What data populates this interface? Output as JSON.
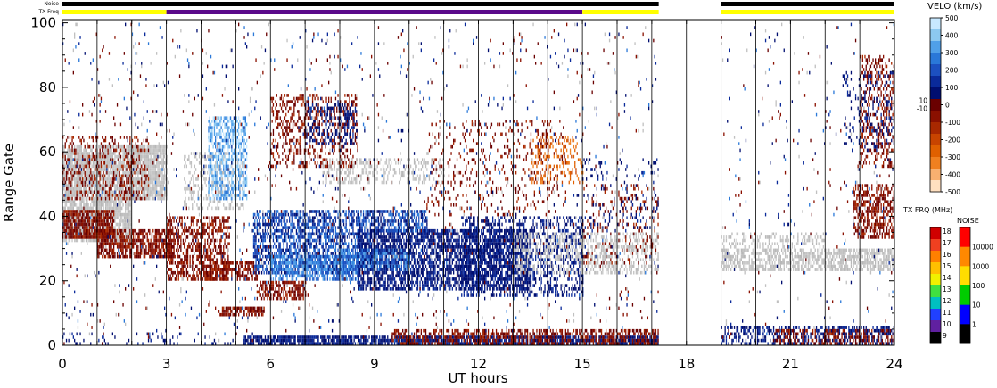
{
  "header": {
    "noise_label": "Noise",
    "txfreq_label": "TX Freq"
  },
  "chart_data": {
    "type": "heatmap",
    "xlabel": "UT hours",
    "ylabel": "Range Gate",
    "xlim": [
      0,
      24
    ],
    "ylim": [
      0,
      101
    ],
    "xticks": [
      "0",
      "3",
      "6",
      "9",
      "12",
      "15",
      "18",
      "21",
      "24"
    ],
    "yticks": [
      "0",
      "20",
      "40",
      "60",
      "80",
      "100"
    ],
    "noise_bar": {
      "color": "#000000",
      "segments": [
        [
          0,
          17.2
        ],
        [
          19.0,
          24
        ]
      ]
    },
    "txfreq_bar": {
      "segments": [
        {
          "start": 0,
          "end": 3,
          "color": "#ffff00"
        },
        {
          "start": 3,
          "end": 15,
          "color": "#5a0a8a"
        },
        {
          "start": 15,
          "end": 17.2,
          "color": "#ffff00"
        },
        {
          "start": 19.0,
          "end": 24,
          "color": "#ffff00"
        }
      ]
    },
    "velocity_scale": {
      "title": "VELO (km/s)",
      "ticks": [
        "500",
        "400",
        "300",
        "200",
        "100",
        "0",
        "-100",
        "-200",
        "-300",
        "-400",
        "-500"
      ],
      "inner_ticks": [
        "10",
        "-10"
      ],
      "colors": [
        "#c8e8ff",
        "#8cc8f0",
        "#50a0e8",
        "#2a78d8",
        "#1c50c0",
        "#0a2a9a",
        "#000e70",
        "#6a0000",
        "#8a1000",
        "#a82800",
        "#c84400",
        "#e06000",
        "#f08020",
        "#f8b070",
        "#ffe0c0"
      ]
    },
    "txfreq_scale": {
      "title": "TX FRQ (MHz)",
      "ticks": [
        "18",
        "17",
        "16",
        "15",
        "14",
        "13",
        "12",
        "11",
        "10",
        "9"
      ],
      "colors": [
        "#d00000",
        "#f04020",
        "#ff8000",
        "#ffc000",
        "#f0f000",
        "#40e040",
        "#00c0c0",
        "#2040ff",
        "#6020a0",
        "#000000"
      ]
    },
    "noise_scale": {
      "title": "NOISE",
      "ticks": [
        "10000",
        "1000",
        "100",
        "10",
        "1"
      ],
      "colors": [
        "#ff0000",
        "#ff8800",
        "#ffdd00",
        "#00cc00",
        "#0000ff",
        "#000000"
      ]
    },
    "ground_scatter_color": "#c0c0c0",
    "regions": [
      {
        "name": "ground-scatter",
        "t0": 0,
        "t1": 3,
        "g0": 45,
        "g1": 62,
        "type": "gray",
        "density": 0.85
      },
      {
        "name": "ground-scatter",
        "t0": 0,
        "t1": 2.0,
        "g0": 32,
        "g1": 45,
        "type": "gray",
        "density": 0.8
      },
      {
        "name": "e-region-echo",
        "t0": 0,
        "t1": 1.5,
        "g0": 33,
        "g1": 42,
        "type": "red",
        "density": 0.8
      },
      {
        "name": "e-region-echo",
        "t0": 1,
        "t1": 3.2,
        "g0": 27,
        "g1": 36,
        "type": "red",
        "density": 0.7
      },
      {
        "name": "e-region-echo",
        "t0": 0,
        "t1": 2.5,
        "g0": 45,
        "g1": 65,
        "type": "red",
        "density": 0.25
      },
      {
        "name": "echo",
        "t0": 3,
        "t1": 4.8,
        "g0": 20,
        "g1": 40,
        "type": "red",
        "density": 0.5
      },
      {
        "name": "echo",
        "t0": 3.5,
        "t1": 5.2,
        "g0": 42,
        "g1": 60,
        "type": "gray",
        "density": 0.3
      },
      {
        "name": "echo",
        "t0": 4.2,
        "t1": 5.3,
        "g0": 45,
        "g1": 71,
        "type": "lightblue",
        "density": 0.55
      },
      {
        "name": "echo",
        "t0": 4.0,
        "t1": 5.6,
        "g0": 20,
        "g1": 26,
        "type": "red",
        "density": 0.6
      },
      {
        "name": "echo",
        "t0": 5.6,
        "t1": 7.0,
        "g0": 14,
        "g1": 20,
        "type": "red",
        "density": 0.6
      },
      {
        "name": "echo",
        "t0": 4.5,
        "t1": 5.8,
        "g0": 9,
        "g1": 12,
        "type": "red",
        "density": 0.7
      },
      {
        "name": "echo",
        "t0": 5.5,
        "t1": 9.0,
        "g0": 22,
        "g1": 42,
        "type": "blue",
        "density": 0.55
      },
      {
        "name": "echo",
        "t0": 6.0,
        "t1": 8.5,
        "g0": 20,
        "g1": 28,
        "type": "midblue",
        "density": 0.6
      },
      {
        "name": "echo",
        "t0": 6.0,
        "t1": 8.5,
        "g0": 55,
        "g1": 78,
        "type": "red",
        "density": 0.3
      },
      {
        "name": "echo",
        "t0": 7.0,
        "t1": 8.5,
        "g0": 62,
        "g1": 75,
        "type": "navy",
        "density": 0.3
      },
      {
        "name": "echo",
        "t0": 7.5,
        "t1": 11,
        "g0": 50,
        "g1": 58,
        "type": "gray",
        "density": 0.3
      },
      {
        "name": "echo",
        "t0": 8.5,
        "t1": 13.5,
        "g0": 17,
        "g1": 36,
        "type": "navy",
        "density": 0.65
      },
      {
        "name": "echo",
        "t0": 9.0,
        "t1": 10.5,
        "g0": 35,
        "g1": 42,
        "type": "blue",
        "density": 0.6
      },
      {
        "name": "echo",
        "t0": 8,
        "t1": 10,
        "g0": 23,
        "g1": 30,
        "type": "midblue",
        "density": 0.5
      },
      {
        "name": "echo",
        "t0": 11.5,
        "t1": 15,
        "g0": 15,
        "g1": 40,
        "type": "navy",
        "density": 0.35
      },
      {
        "name": "echo",
        "t0": 10.5,
        "t1": 14.5,
        "g0": 40,
        "g1": 70,
        "type": "red",
        "density": 0.1
      },
      {
        "name": "echo",
        "t0": 13.5,
        "t1": 15,
        "g0": 50,
        "g1": 65,
        "type": "orange",
        "density": 0.25
      },
      {
        "name": "echo",
        "t0": 13,
        "t1": 15,
        "g0": 22,
        "g1": 35,
        "type": "gray",
        "density": 0.3
      },
      {
        "name": "echo",
        "t0": 15,
        "t1": 17.2,
        "g0": 22,
        "g1": 35,
        "type": "gray",
        "density": 0.35
      },
      {
        "name": "echo",
        "t0": 15,
        "t1": 17.2,
        "g0": 25,
        "g1": 50,
        "type": "red",
        "density": 0.12
      },
      {
        "name": "echo",
        "t0": 15,
        "t1": 17.2,
        "g0": 35,
        "g1": 58,
        "type": "navy",
        "density": 0.08
      },
      {
        "name": "near-range",
        "t0": 5.2,
        "t1": 17.2,
        "g0": 0,
        "g1": 3,
        "type": "navy",
        "density": 0.8
      },
      {
        "name": "near-range",
        "t0": 9.5,
        "t1": 17.2,
        "g0": 0,
        "g1": 5,
        "type": "red",
        "density": 0.5
      },
      {
        "name": "near-range",
        "t0": 0,
        "t1": 5,
        "g0": 0,
        "g1": 4,
        "type": "navy",
        "density": 0.1
      },
      {
        "name": "scatter",
        "t0": 0,
        "t1": 17.2,
        "g0": 0,
        "g1": 100,
        "type": "mixed",
        "density": 0.025
      },
      {
        "name": "ground-scatter",
        "t0": 19.0,
        "t1": 24,
        "g0": 23,
        "g1": 30,
        "type": "gray",
        "density": 0.6
      },
      {
        "name": "ground-scatter",
        "t0": 19.0,
        "t1": 22,
        "g0": 30,
        "g1": 35,
        "type": "gray",
        "density": 0.3
      },
      {
        "name": "near-range",
        "t0": 19.0,
        "t1": 24,
        "g0": 0,
        "g1": 6,
        "type": "navy",
        "density": 0.45
      },
      {
        "name": "near-range",
        "t0": 20.5,
        "t1": 24,
        "g0": 0,
        "g1": 5,
        "type": "red",
        "density": 0.4
      },
      {
        "name": "echo",
        "t0": 22.8,
        "t1": 24,
        "g0": 33,
        "g1": 50,
        "type": "red",
        "density": 0.5
      },
      {
        "name": "echo",
        "t0": 23,
        "t1": 24,
        "g0": 55,
        "g1": 90,
        "type": "red",
        "density": 0.3
      },
      {
        "name": "echo",
        "t0": 22.5,
        "t1": 24,
        "g0": 60,
        "g1": 85,
        "type": "navy",
        "density": 0.15
      },
      {
        "name": "scatter",
        "t0": 19.0,
        "t1": 24,
        "g0": 0,
        "g1": 100,
        "type": "mixed",
        "density": 0.02
      }
    ]
  }
}
